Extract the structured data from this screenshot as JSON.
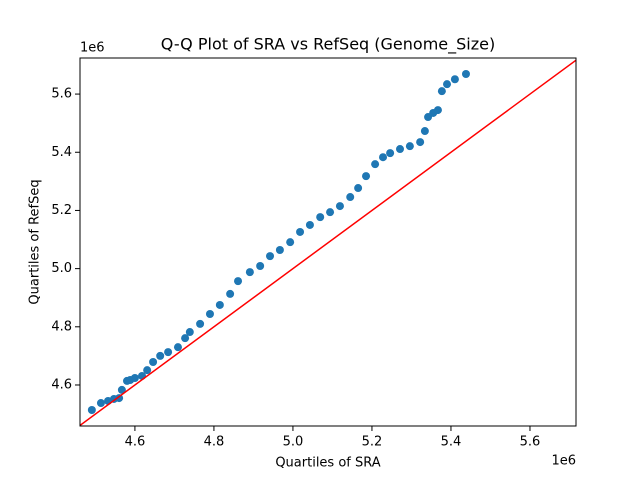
{
  "chart_data": {
    "type": "scatter",
    "title": "Q-Q Plot of SRA vs RefSeq (Genome_Size)",
    "xlabel": "Quartiles of SRA",
    "ylabel": "Quartiles of RefSeq",
    "x_offset_label": "1e6",
    "y_offset_label": "1e6",
    "color": "#1f77b4",
    "x": [
      4.491,
      4.514,
      4.532,
      4.547,
      4.56,
      4.567,
      4.58,
      4.588,
      4.6,
      4.618,
      4.631,
      4.646,
      4.664,
      4.684,
      4.709,
      4.727,
      4.739,
      4.765,
      4.79,
      4.815,
      4.841,
      4.861,
      4.891,
      4.917,
      4.942,
      4.967,
      4.993,
      5.018,
      5.043,
      5.069,
      5.094,
      5.119,
      5.145,
      5.165,
      5.185,
      5.208,
      5.228,
      5.246,
      5.271,
      5.296,
      5.322,
      5.334,
      5.342,
      5.355,
      5.367,
      5.377,
      5.39,
      5.41,
      5.438
    ],
    "values": [
      4.514,
      4.538,
      4.545,
      4.552,
      4.555,
      4.583,
      4.614,
      4.617,
      4.624,
      4.631,
      4.651,
      4.679,
      4.7,
      4.713,
      4.73,
      4.761,
      4.782,
      4.81,
      4.844,
      4.875,
      4.913,
      4.957,
      4.988,
      5.009,
      5.043,
      5.064,
      5.091,
      5.126,
      5.15,
      5.177,
      5.194,
      5.215,
      5.246,
      5.277,
      5.318,
      5.359,
      5.383,
      5.397,
      5.411,
      5.421,
      5.435,
      5.473,
      5.521,
      5.535,
      5.545,
      5.61,
      5.634,
      5.651,
      5.669
    ],
    "reference_line": {
      "color": "#ff0000",
      "x": [
        4.461,
        5.7165
      ],
      "y": [
        4.461,
        5.7165
      ]
    },
    "xlim": [
      4.461,
      5.7165
    ],
    "ylim": [
      4.459,
      5.724
    ],
    "xticks": [
      4.6,
      4.8,
      {
        "value": 5,
        "label": "5.0"
      },
      5.2,
      5.4,
      5.6
    ],
    "yticks": [
      4.6,
      4.8,
      {
        "value": 5,
        "label": "5.0"
      },
      5.2,
      5.4,
      5.6
    ]
  }
}
